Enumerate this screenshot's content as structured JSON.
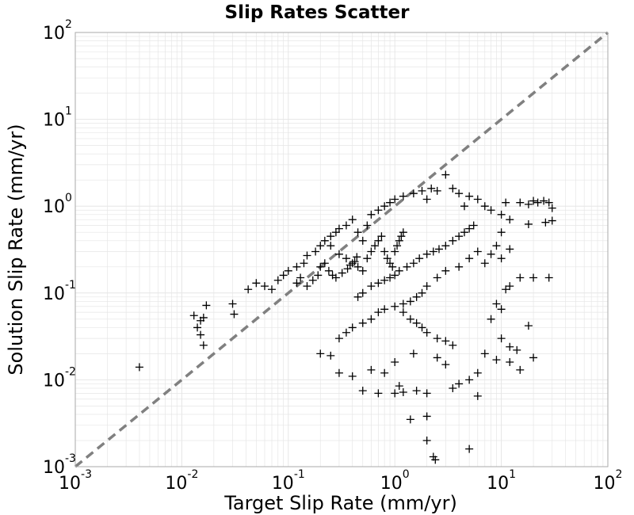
{
  "chart_data": {
    "type": "scatter",
    "title": "Slip Rates Scatter",
    "xlabel": "Target Slip Rate (mm/yr)",
    "ylabel": "Solution Slip Rate (mm/yr)",
    "xscale": "log",
    "yscale": "log",
    "xlim": [
      0.001,
      100
    ],
    "ylim": [
      0.001,
      100
    ],
    "grid": true,
    "marker": "+",
    "colors": {
      "points": "#000000",
      "reference_line": "#808080",
      "grid": "#e6e6e6",
      "frame": "#aaaaaa"
    },
    "x_ticks": [
      {
        "base": "10",
        "exp": "-3"
      },
      {
        "base": "10",
        "exp": "-2"
      },
      {
        "base": "10",
        "exp": "-1"
      },
      {
        "base": "10",
        "exp": "0"
      },
      {
        "base": "10",
        "exp": "1"
      },
      {
        "base": "10",
        "exp": "2"
      }
    ],
    "y_ticks": [
      {
        "base": "10",
        "exp": "-3"
      },
      {
        "base": "10",
        "exp": "-2"
      },
      {
        "base": "10",
        "exp": "-1"
      },
      {
        "base": "10",
        "exp": "0"
      },
      {
        "base": "10",
        "exp": "1"
      },
      {
        "base": "10",
        "exp": "2"
      }
    ],
    "reference_line": {
      "style": "dashed",
      "x": [
        0.001,
        100
      ],
      "y": [
        0.001,
        100
      ]
    },
    "series": [
      {
        "points": [
          [
            0.004,
            0.014
          ],
          [
            0.013,
            0.055
          ],
          [
            0.016,
            0.025
          ],
          [
            0.015,
            0.033
          ],
          [
            0.014,
            0.04
          ],
          [
            0.015,
            0.048
          ],
          [
            0.016,
            0.052
          ],
          [
            0.017,
            0.072
          ],
          [
            0.03,
            0.075
          ],
          [
            0.031,
            0.057
          ],
          [
            0.042,
            0.11
          ],
          [
            0.05,
            0.13
          ],
          [
            0.06,
            0.12
          ],
          [
            0.07,
            0.11
          ],
          [
            0.08,
            0.14
          ],
          [
            0.09,
            0.16
          ],
          [
            0.1,
            0.18
          ],
          [
            0.12,
            0.2
          ],
          [
            0.14,
            0.22
          ],
          [
            0.15,
            0.27
          ],
          [
            0.18,
            0.3
          ],
          [
            0.2,
            0.35
          ],
          [
            0.22,
            0.4
          ],
          [
            0.25,
            0.45
          ],
          [
            0.28,
            0.5
          ],
          [
            0.3,
            0.55
          ],
          [
            0.35,
            0.6
          ],
          [
            0.4,
            0.7
          ],
          [
            0.45,
            0.5
          ],
          [
            0.5,
            0.4
          ],
          [
            0.55,
            0.6
          ],
          [
            0.6,
            0.8
          ],
          [
            0.7,
            0.9
          ],
          [
            0.8,
            1.0
          ],
          [
            0.9,
            1.1
          ],
          [
            1.0,
            1.2
          ],
          [
            1.2,
            1.3
          ],
          [
            1.5,
            1.4
          ],
          [
            1.8,
            1.5
          ],
          [
            2.0,
            1.2
          ],
          [
            2.2,
            1.6
          ],
          [
            2.5,
            1.5
          ],
          [
            3.0,
            2.3
          ],
          [
            3.5,
            1.6
          ],
          [
            4.0,
            1.4
          ],
          [
            4.5,
            1.0
          ],
          [
            5.0,
            1.3
          ],
          [
            6.0,
            1.2
          ],
          [
            7.0,
            1.0
          ],
          [
            8.0,
            0.9
          ],
          [
            10.0,
            0.8
          ],
          [
            11.0,
            1.1
          ],
          [
            15.0,
            1.1
          ],
          [
            18.0,
            1.05
          ],
          [
            20.0,
            1.15
          ],
          [
            22.0,
            1.1
          ],
          [
            25.0,
            1.15
          ],
          [
            28.0,
            1.1
          ],
          [
            30.0,
            0.95
          ],
          [
            30.0,
            0.68
          ],
          [
            26.0,
            0.65
          ],
          [
            18.0,
            0.62
          ],
          [
            12.0,
            0.7
          ],
          [
            10.0,
            0.5
          ],
          [
            9.0,
            0.35
          ],
          [
            8.0,
            0.28
          ],
          [
            7.0,
            0.22
          ],
          [
            10.0,
            0.25
          ],
          [
            12.0,
            0.32
          ],
          [
            15.0,
            0.15
          ],
          [
            20.0,
            0.15
          ],
          [
            28.0,
            0.15
          ],
          [
            12.0,
            0.12
          ],
          [
            11.0,
            0.11
          ],
          [
            9.0,
            0.075
          ],
          [
            10.0,
            0.065
          ],
          [
            8.0,
            0.05
          ],
          [
            10.0,
            0.03
          ],
          [
            12.0,
            0.024
          ],
          [
            14.0,
            0.022
          ],
          [
            18.0,
            0.042
          ],
          [
            20.0,
            0.018
          ],
          [
            15.0,
            0.013
          ],
          [
            12.0,
            0.016
          ],
          [
            9.0,
            0.017
          ],
          [
            7.0,
            0.02
          ],
          [
            6.0,
            0.012
          ],
          [
            5.0,
            0.01
          ],
          [
            4.0,
            0.009
          ],
          [
            3.5,
            0.008
          ],
          [
            3.0,
            0.015
          ],
          [
            2.5,
            0.018
          ],
          [
            2.0,
            0.007
          ],
          [
            1.6,
            0.0075
          ],
          [
            1.2,
            0.0072
          ],
          [
            1.0,
            0.007
          ],
          [
            0.7,
            0.007
          ],
          [
            0.5,
            0.0075
          ],
          [
            0.4,
            0.011
          ],
          [
            0.3,
            0.012
          ],
          [
            0.25,
            0.019
          ],
          [
            0.2,
            0.02
          ],
          [
            0.3,
            0.03
          ],
          [
            0.35,
            0.035
          ],
          [
            0.4,
            0.04
          ],
          [
            0.5,
            0.045
          ],
          [
            0.6,
            0.05
          ],
          [
            0.7,
            0.06
          ],
          [
            0.8,
            0.065
          ],
          [
            1.0,
            0.07
          ],
          [
            1.2,
            0.06
          ],
          [
            1.4,
            0.05
          ],
          [
            1.6,
            0.045
          ],
          [
            1.8,
            0.04
          ],
          [
            2.0,
            0.035
          ],
          [
            2.5,
            0.03
          ],
          [
            3.0,
            0.028
          ],
          [
            3.5,
            0.025
          ],
          [
            1.5,
            0.02
          ],
          [
            1.0,
            0.016
          ],
          [
            0.8,
            0.012
          ],
          [
            0.6,
            0.013
          ],
          [
            1.1,
            0.0085
          ],
          [
            1.4,
            0.0035
          ],
          [
            2.0,
            0.0038
          ],
          [
            2.0,
            0.002
          ],
          [
            2.3,
            0.0013
          ],
          [
            2.4,
            0.0012
          ],
          [
            5.0,
            0.0016
          ],
          [
            6.0,
            0.0065
          ],
          [
            0.45,
            0.09
          ],
          [
            0.5,
            0.1
          ],
          [
            0.6,
            0.12
          ],
          [
            0.7,
            0.13
          ],
          [
            0.8,
            0.14
          ],
          [
            0.9,
            0.15
          ],
          [
            1.0,
            0.16
          ],
          [
            1.1,
            0.18
          ],
          [
            1.3,
            0.2
          ],
          [
            1.5,
            0.22
          ],
          [
            1.7,
            0.25
          ],
          [
            2.0,
            0.28
          ],
          [
            2.3,
            0.3
          ],
          [
            2.6,
            0.32
          ],
          [
            3.0,
            0.35
          ],
          [
            3.5,
            0.4
          ],
          [
            4.0,
            0.45
          ],
          [
            4.5,
            0.5
          ],
          [
            5.0,
            0.55
          ],
          [
            5.5,
            0.6
          ],
          [
            6.0,
            0.3
          ],
          [
            5.0,
            0.25
          ],
          [
            4.0,
            0.2
          ],
          [
            3.0,
            0.18
          ],
          [
            2.5,
            0.15
          ],
          [
            2.0,
            0.12
          ],
          [
            1.8,
            0.1
          ],
          [
            1.6,
            0.09
          ],
          [
            1.4,
            0.08
          ],
          [
            1.2,
            0.075
          ],
          [
            0.25,
            0.35
          ],
          [
            0.3,
            0.28
          ],
          [
            0.35,
            0.25
          ],
          [
            0.4,
            0.22
          ],
          [
            0.45,
            0.2
          ],
          [
            0.5,
            0.18
          ],
          [
            0.55,
            0.25
          ],
          [
            0.6,
            0.3
          ],
          [
            0.65,
            0.35
          ],
          [
            0.7,
            0.4
          ],
          [
            0.75,
            0.45
          ],
          [
            0.8,
            0.3
          ],
          [
            0.85,
            0.25
          ],
          [
            0.9,
            0.22
          ],
          [
            0.95,
            0.2
          ],
          [
            1.0,
            0.3
          ],
          [
            1.05,
            0.35
          ],
          [
            1.1,
            0.4
          ],
          [
            1.15,
            0.45
          ],
          [
            1.2,
            0.5
          ],
          [
            0.2,
            0.2
          ],
          [
            0.22,
            0.22
          ],
          [
            0.24,
            0.18
          ],
          [
            0.26,
            0.16
          ],
          [
            0.28,
            0.15
          ],
          [
            0.32,
            0.17
          ],
          [
            0.36,
            0.19
          ],
          [
            0.38,
            0.21
          ],
          [
            0.42,
            0.23
          ],
          [
            0.44,
            0.26
          ],
          [
            0.15,
            0.12
          ],
          [
            0.17,
            0.14
          ],
          [
            0.19,
            0.16
          ],
          [
            0.13,
            0.15
          ],
          [
            0.12,
            0.13
          ]
        ]
      }
    ]
  }
}
